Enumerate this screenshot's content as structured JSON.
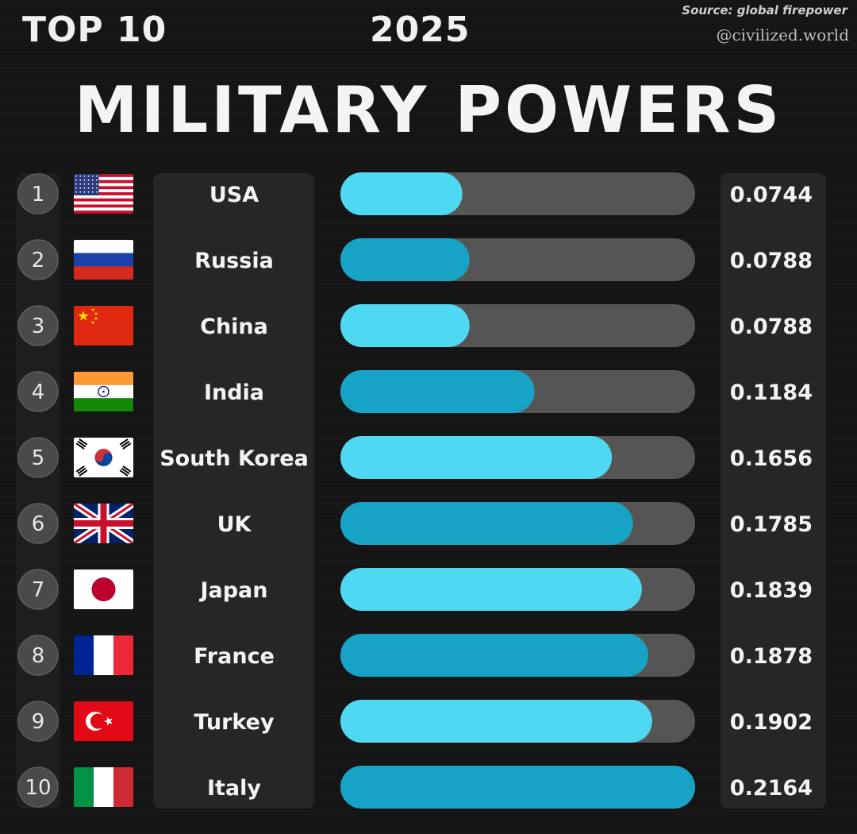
{
  "header": {
    "left": "TOP 10",
    "year": "2025",
    "source": "Source: global firepower",
    "handle": "@civilized.world",
    "title": "MILITARY POWERS"
  },
  "colors": {
    "bar_light": "#4fd8f2",
    "bar_dark": "#17a3c6",
    "track": "#555555",
    "circle": "#4a4a4a"
  },
  "chart_data": {
    "type": "bar",
    "orientation": "horizontal",
    "title": "MILITARY POWERS",
    "categories": [
      "USA",
      "Russia",
      "China",
      "India",
      "South Korea",
      "UK",
      "Japan",
      "France",
      "Turkey",
      "Italy"
    ],
    "ranks": [
      "1",
      "2",
      "3",
      "4",
      "5",
      "6",
      "7",
      "8",
      "9",
      "10"
    ],
    "value_labels": [
      "0.0744",
      "0.0788",
      "0.0788",
      "0.1184",
      "0.1656",
      "0.1785",
      "0.1839",
      "0.1878",
      "0.1902",
      "0.2164"
    ],
    "values": [
      0.0744,
      0.0788,
      0.0788,
      0.1184,
      0.1656,
      0.1785,
      0.1839,
      0.1878,
      0.1902,
      0.2164
    ],
    "flags": [
      "usa-flag",
      "russia-flag",
      "china-flag",
      "india-flag",
      "south-korea-flag",
      "uk-flag",
      "japan-flag",
      "france-flag",
      "turkey-flag",
      "italy-flag"
    ],
    "grid": false,
    "legend": "none"
  }
}
